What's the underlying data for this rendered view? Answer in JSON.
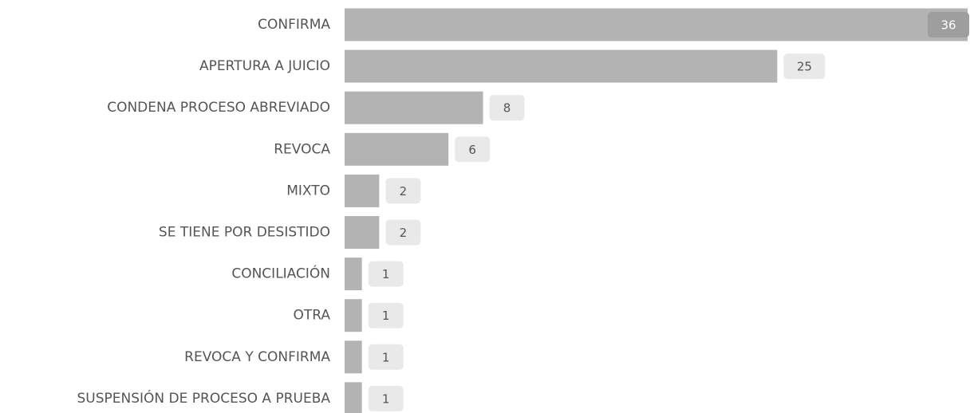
{
  "chart_data": {
    "type": "bar",
    "orientation": "horizontal",
    "categories": [
      "CONFIRMA",
      "APERTURA A JUICIO",
      "CONDENA PROCESO ABREVIADO",
      "REVOCA",
      "MIXTO",
      "SE TIENE POR DESISTIDO",
      "CONCILIACIÓN",
      "OTRA",
      "REVOCA Y CONFIRMA",
      "SUSPENSIÓN DE PROCESO A PRUEBA"
    ],
    "values": [
      36,
      25,
      8,
      6,
      2,
      2,
      1,
      1,
      1,
      1
    ],
    "color": "#b3b3b3"
  }
}
